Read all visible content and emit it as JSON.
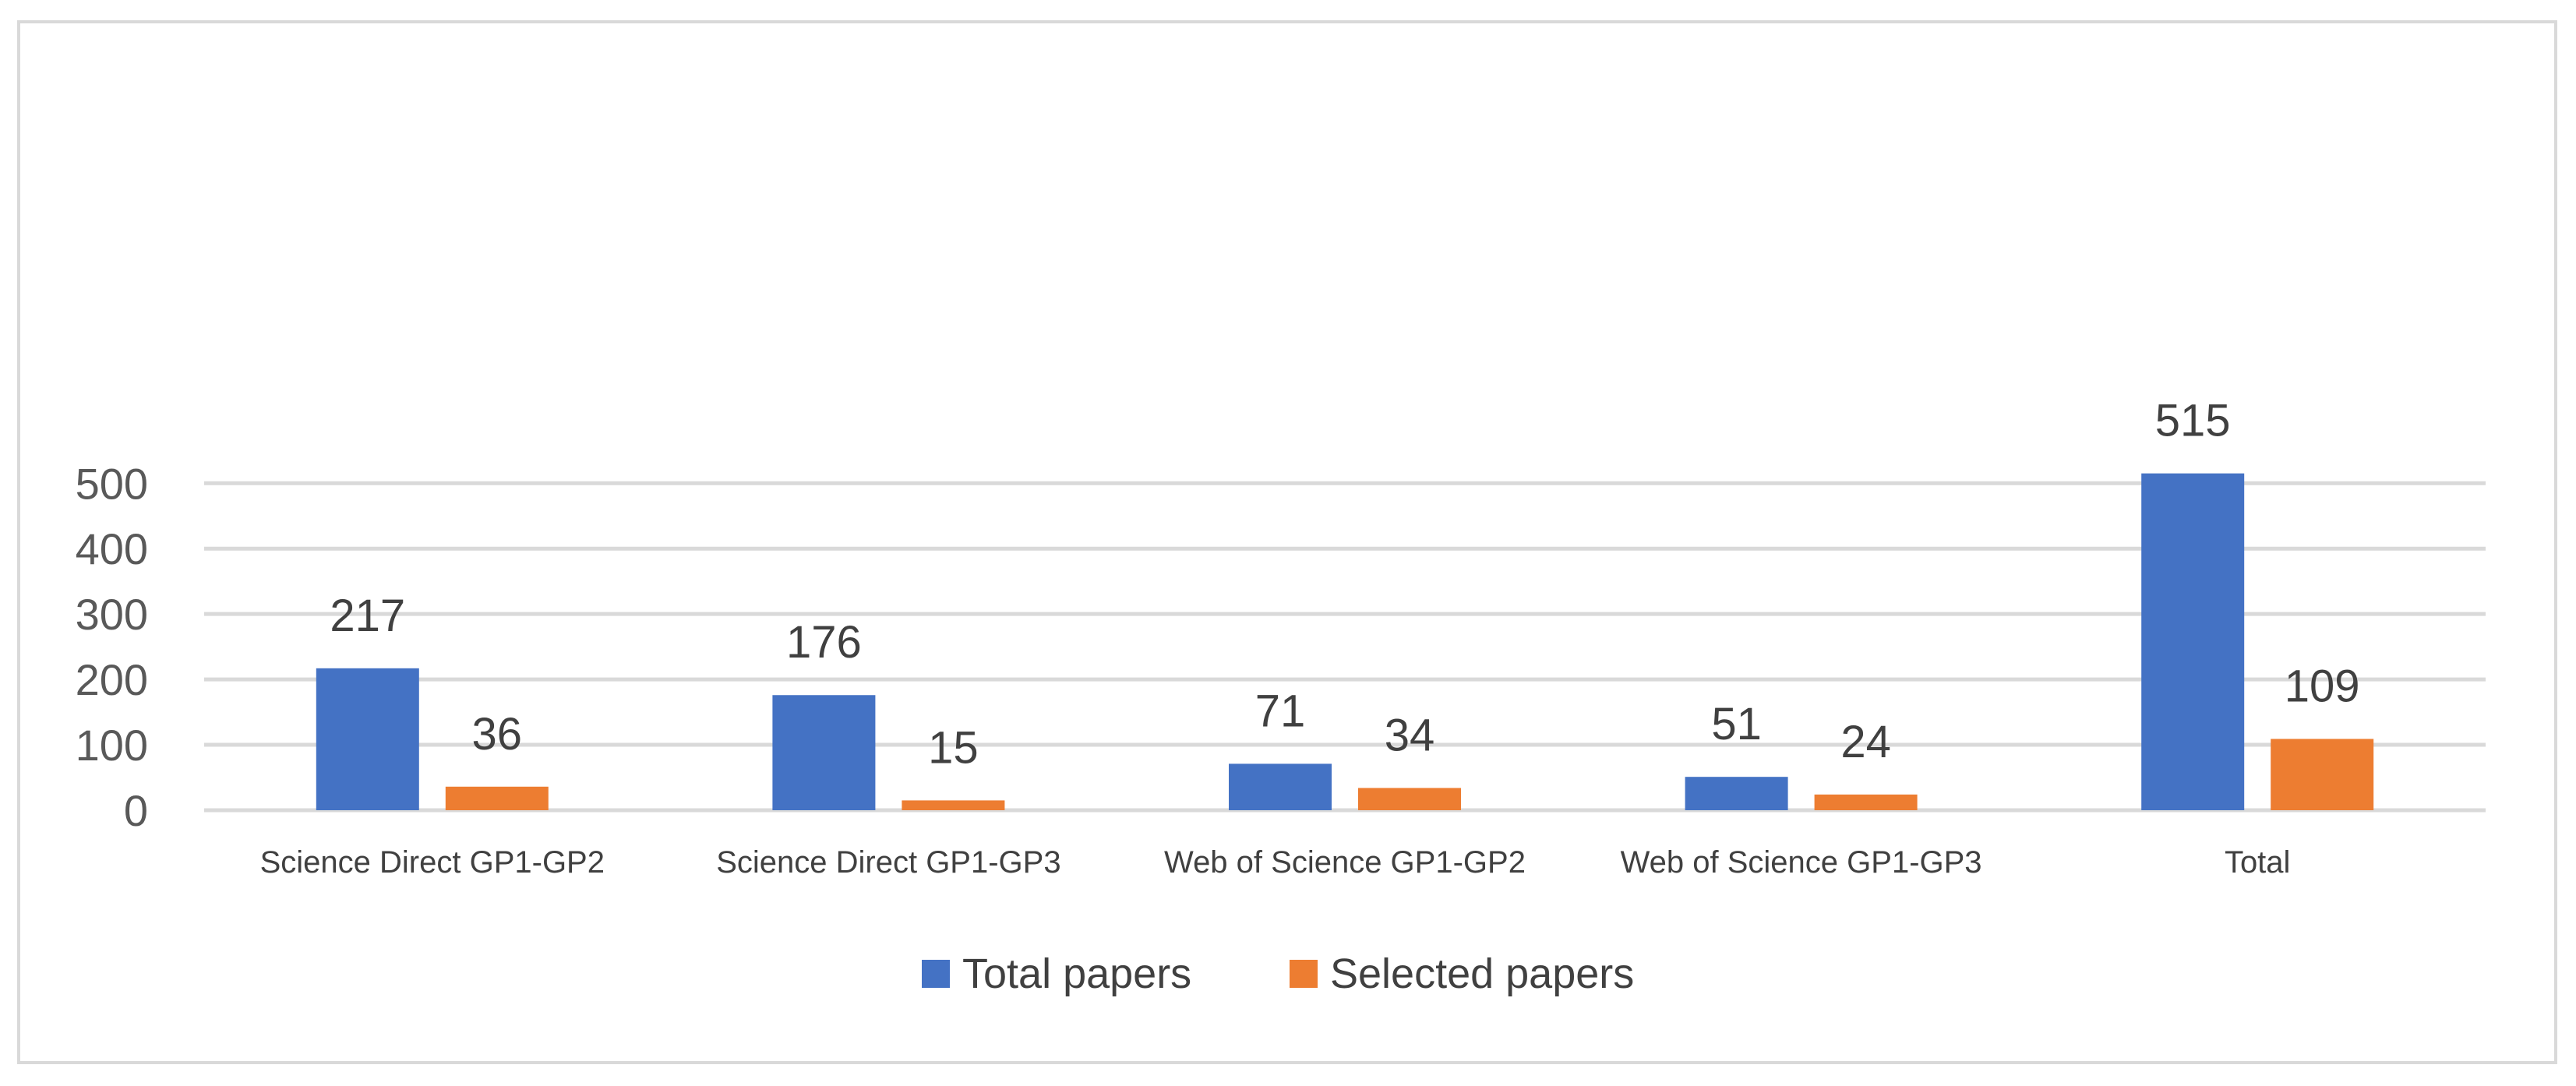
{
  "chart_data": {
    "type": "bar",
    "title": "",
    "xlabel": "",
    "ylabel": "",
    "categories": [
      "Science Direct GP1-GP2",
      "Science Direct GP1-GP3",
      "Web of Science GP1-GP2",
      "Web of Science GP1-GP3",
      "Total"
    ],
    "series": [
      {
        "name": "Total papers",
        "color": "#4472C4",
        "values": [
          217,
          176,
          71,
          51,
          515
        ]
      },
      {
        "name": "Selected papers",
        "color": "#ED7D31",
        "values": [
          36,
          15,
          34,
          24,
          109
        ]
      }
    ],
    "ylim": [
      0,
      560
    ],
    "yticks": [
      0,
      100,
      200,
      300,
      400,
      500
    ],
    "grid": true,
    "data_labels": true,
    "legend_position": "bottom"
  }
}
